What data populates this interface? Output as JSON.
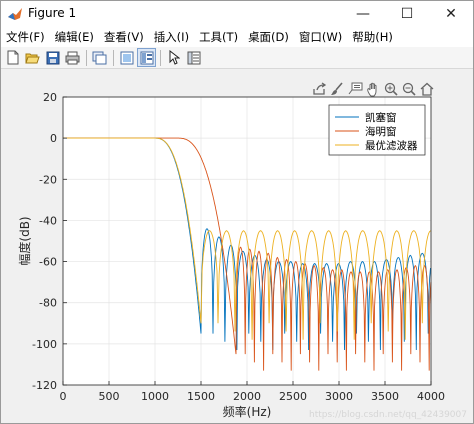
{
  "window": {
    "title": "Figure 1",
    "minimize_glyph": "—",
    "maximize_glyph": "☐",
    "close_glyph": "✕"
  },
  "menu": {
    "items": [
      "文件(F)",
      "编辑(E)",
      "查看(V)",
      "插入(I)",
      "工具(T)",
      "桌面(D)",
      "窗口(W)",
      "帮助(H)"
    ]
  },
  "toolbar": {
    "icons": [
      "new-figure-icon",
      "open-file-icon",
      "save-icon",
      "print-icon",
      "link-plot-icon",
      "hide-plot-tools-icon",
      "show-plot-tools-icon",
      "edit-plot-arrow-icon",
      "property-inspector-icon"
    ]
  },
  "axes_toolbar": {
    "icons": [
      "export-icon",
      "brush-icon",
      "datatip-icon",
      "pan-icon",
      "zoom-in-icon",
      "zoom-out-icon",
      "home-icon"
    ]
  },
  "watermark": "https://blog.csdn.net/qq_42439007",
  "colors": {
    "series_kaiser": "#0072bd",
    "series_hamming": "#d95319",
    "series_optimal": "#edb120"
  },
  "chart_data": {
    "type": "line",
    "title": "",
    "xlabel": "频率(Hz)",
    "ylabel": "幅度(dB)",
    "xlim": [
      0,
      4000
    ],
    "ylim": [
      -120,
      20
    ],
    "xticks": [
      0,
      500,
      1000,
      1500,
      2000,
      2500,
      3000,
      3500,
      4000
    ],
    "yticks": [
      20,
      0,
      -20,
      -40,
      -60,
      -80,
      -100,
      -120
    ],
    "grid": true,
    "legend_position": "top-right",
    "series": [
      {
        "name": "凯塞窗",
        "color": "#0072bd",
        "passband_edge_hz": 1000,
        "rolloff_end_hz": 1500,
        "stopband_first_null_hz": 1500,
        "stopband_null_spacing_hz": 130,
        "stopband_peak_db": [
          -44,
          -48,
          -52,
          -55,
          -57,
          -59,
          -60,
          -60,
          -61,
          -61,
          -61,
          -61,
          -60,
          -60,
          -60,
          -59,
          -58,
          -57,
          -56,
          -55
        ],
        "stopband_null_db": -95
      },
      {
        "name": "海明窗",
        "color": "#d95319",
        "passband_edge_hz": 1250,
        "rolloff_end_hz": 1880,
        "stopband_first_null_hz": 1880,
        "stopband_null_spacing_hz": 100,
        "stopband_peak_db": [
          -53,
          -54,
          -55,
          -56,
          -58,
          -59,
          -60,
          -61,
          -62,
          -63,
          -64,
          -64,
          -65,
          -65,
          -65,
          -65,
          -64,
          -64,
          -63,
          -62,
          -62
        ],
        "stopband_null_db": -105
      },
      {
        "name": "最优滤波器",
        "color": "#edb120",
        "passband_edge_hz": 1000,
        "rolloff_end_hz": 1500,
        "stopband_first_null_hz": 1500,
        "stopband_null_spacing_hz": 185,
        "stopband_peak_db": [
          -45,
          -45,
          -45,
          -45,
          -45,
          -45,
          -45,
          -45,
          -45,
          -45,
          -45,
          -45,
          -45,
          -45
        ],
        "stopband_null_db": -90
      }
    ]
  }
}
